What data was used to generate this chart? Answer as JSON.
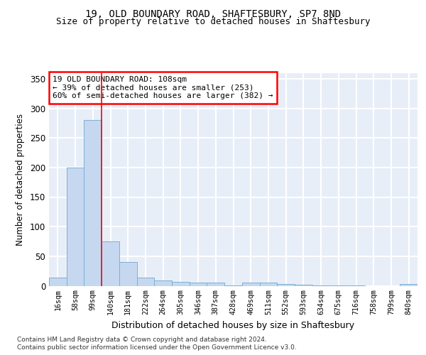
{
  "title1": "19, OLD BOUNDARY ROAD, SHAFTESBURY, SP7 8ND",
  "title2": "Size of property relative to detached houses in Shaftesbury",
  "xlabel": "Distribution of detached houses by size in Shaftesbury",
  "ylabel": "Number of detached properties",
  "bin_labels": [
    "16sqm",
    "58sqm",
    "99sqm",
    "140sqm",
    "181sqm",
    "222sqm",
    "264sqm",
    "305sqm",
    "346sqm",
    "387sqm",
    "428sqm",
    "469sqm",
    "511sqm",
    "552sqm",
    "593sqm",
    "634sqm",
    "675sqm",
    "716sqm",
    "758sqm",
    "799sqm",
    "840sqm"
  ],
  "values": [
    14,
    200,
    280,
    75,
    40,
    14,
    9,
    7,
    6,
    5,
    1,
    6,
    6,
    3,
    2,
    1,
    1,
    1,
    0,
    0,
    3
  ],
  "bar_color": "#c5d8f0",
  "bar_edge_color": "#7dafd4",
  "red_line_x": 2.5,
  "annotation_text": "19 OLD BOUNDARY ROAD: 108sqm\n← 39% of detached houses are smaller (253)\n60% of semi-detached houses are larger (382) →",
  "annotation_box_color": "white",
  "annotation_box_edge_color": "red",
  "footnote1": "Contains HM Land Registry data © Crown copyright and database right 2024.",
  "footnote2": "Contains public sector information licensed under the Open Government Licence v3.0.",
  "ylim": [
    0,
    360
  ],
  "yticks": [
    0,
    50,
    100,
    150,
    200,
    250,
    300,
    350
  ],
  "background_color": "#e8eef8",
  "grid_color": "white",
  "title1_fontsize": 10,
  "title2_fontsize": 9
}
